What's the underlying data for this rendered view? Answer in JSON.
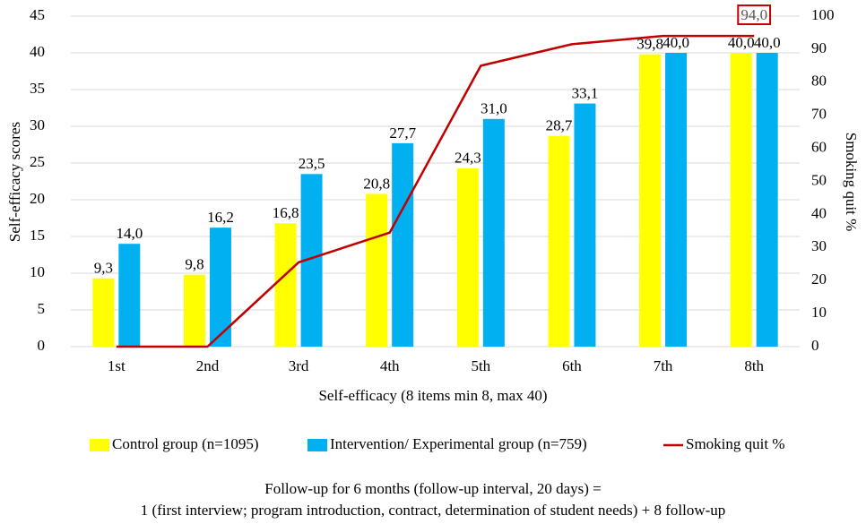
{
  "chart_data": {
    "type": "bar",
    "x_label": "Self-efficacy (8 items min 8, max 40)",
    "y_label": "Self-efficacy scores",
    "y2_label": "Smoking quit %",
    "categories": [
      "1st",
      "2nd",
      "3rd",
      "4th",
      "5th",
      "6th",
      "7th",
      "8th"
    ],
    "series": [
      {
        "name": "Control group (n=1095)",
        "type": "bar",
        "color": "#ffff00",
        "values": [
          9.3,
          9.8,
          16.8,
          20.8,
          24.3,
          28.7,
          39.8,
          40.0
        ],
        "value_labels": [
          "9,3",
          "9,8",
          "16,8",
          "20,8",
          "24,3",
          "28,7",
          "39,8",
          "40,0"
        ]
      },
      {
        "name": "Intervention/ Experimental group (n=759)",
        "type": "bar",
        "color": "#00b0f0",
        "values": [
          14.0,
          16.2,
          23.5,
          27.7,
          31.0,
          33.1,
          40.0,
          40.0
        ],
        "value_labels": [
          "14,0",
          "16,2",
          "23,5",
          "27,7",
          "31,0",
          "33,1",
          "40,0",
          "40,0"
        ]
      },
      {
        "name": "Smoking quit %",
        "type": "line",
        "axis": "y2",
        "color": "#c00000",
        "values": [
          0,
          0,
          25.5,
          34.5,
          85,
          91.5,
          94,
          94.0
        ],
        "value_labels": [
          null,
          null,
          null,
          null,
          null,
          null,
          null,
          "94,0"
        ]
      }
    ],
    "ylim": [
      0,
      45
    ],
    "yticks": [
      0,
      5,
      10,
      15,
      20,
      25,
      30,
      35,
      40,
      45
    ],
    "y2lim": [
      0,
      100
    ],
    "y2ticks": [
      0,
      10,
      20,
      30,
      40,
      50,
      60,
      70,
      80,
      90,
      100
    ],
    "grid": true,
    "legend": "bottom",
    "notes": [
      "Follow-up for 6 months (follow-up interval, 20 days) =",
      "1 (first interview; program introduction, contract, determination of student needs) + 8 follow-up"
    ]
  }
}
